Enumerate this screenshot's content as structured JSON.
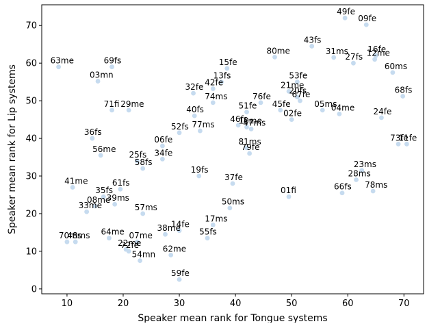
{
  "chart_data": {
    "type": "scatter",
    "title": "",
    "xlabel": "Speaker mean rank for Tongue systems",
    "ylabel": "Speaker mean rank for Lip systems",
    "xlim": [
      5.5,
      73.5
    ],
    "ylim": [
      -1.3,
      75.5
    ],
    "xticks": [
      10,
      20,
      30,
      40,
      50,
      60,
      70
    ],
    "yticks": [
      0,
      10,
      20,
      30,
      40,
      50,
      60,
      70
    ],
    "grid": false,
    "legend": "none",
    "marker_color": "#c6dbef",
    "points": [
      {
        "label": "49fe",
        "x": 59.5,
        "y": 72.0
      },
      {
        "label": "09fe",
        "x": 63.3,
        "y": 70.2
      },
      {
        "label": "43fs",
        "x": 53.6,
        "y": 64.5
      },
      {
        "label": "31ms",
        "x": 57.5,
        "y": 61.5
      },
      {
        "label": "80me",
        "x": 47.0,
        "y": 61.6
      },
      {
        "label": "27fs",
        "x": 61.0,
        "y": 60.0
      },
      {
        "label": "16fe",
        "x": 65.0,
        "y": 62.0
      },
      {
        "label": "12me",
        "x": 64.8,
        "y": 61.0
      },
      {
        "label": "60ms",
        "x": 68.0,
        "y": 57.5
      },
      {
        "label": "68fs",
        "x": 69.8,
        "y": 51.2
      },
      {
        "label": "63me",
        "x": 8.5,
        "y": 59.0
      },
      {
        "label": "69fs",
        "x": 18.0,
        "y": 59.0
      },
      {
        "label": "03mn",
        "x": 15.5,
        "y": 55.2
      },
      {
        "label": "71fi",
        "x": 18.0,
        "y": 47.5
      },
      {
        "label": "29me",
        "x": 21.0,
        "y": 47.5
      },
      {
        "label": "15fe",
        "x": 38.5,
        "y": 58.6
      },
      {
        "label": "13fs",
        "x": 37.5,
        "y": 55.0
      },
      {
        "label": "32fe",
        "x": 32.5,
        "y": 52.0
      },
      {
        "label": "42fe",
        "x": 36.0,
        "y": 53.2
      },
      {
        "label": "74ms",
        "x": 36.0,
        "y": 49.5
      },
      {
        "label": "40fs",
        "x": 32.7,
        "y": 46.0
      },
      {
        "label": "46fs",
        "x": 40.5,
        "y": 43.5
      },
      {
        "label": "77ms",
        "x": 33.7,
        "y": 42.0
      },
      {
        "label": "52fs",
        "x": 30.0,
        "y": 41.5
      },
      {
        "label": "06fe",
        "x": 27.0,
        "y": 38.0
      },
      {
        "label": "34fe",
        "x": 27.0,
        "y": 34.5
      },
      {
        "label": "36fs",
        "x": 14.5,
        "y": 40.0
      },
      {
        "label": "56me",
        "x": 16.0,
        "y": 35.5
      },
      {
        "label": "25fs",
        "x": 22.5,
        "y": 34.0
      },
      {
        "label": "58fs",
        "x": 23.5,
        "y": 32.0
      },
      {
        "label": "53fe",
        "x": 51.0,
        "y": 55.0
      },
      {
        "label": "21me",
        "x": 49.5,
        "y": 52.5
      },
      {
        "label": "20fs",
        "x": 51.0,
        "y": 51.0
      },
      {
        "label": "76fe",
        "x": 44.5,
        "y": 49.5
      },
      {
        "label": "67fe",
        "x": 51.5,
        "y": 50.0
      },
      {
        "label": "51fe",
        "x": 42.0,
        "y": 47.0
      },
      {
        "label": "45fe",
        "x": 48.0,
        "y": 47.5
      },
      {
        "label": "05ms",
        "x": 55.5,
        "y": 47.5
      },
      {
        "label": "04me",
        "x": 58.5,
        "y": 46.5
      },
      {
        "label": "24fe",
        "x": 66.0,
        "y": 45.5
      },
      {
        "label": "02fe",
        "x": 50.0,
        "y": 45.0
      },
      {
        "label": "10me",
        "x": 42.0,
        "y": 43.0
      },
      {
        "label": "47ms",
        "x": 42.8,
        "y": 42.5
      },
      {
        "label": "81ms",
        "x": 42.0,
        "y": 37.5
      },
      {
        "label": "79fe",
        "x": 42.5,
        "y": 36.0
      },
      {
        "label": "73fe",
        "x": 69.0,
        "y": 38.5
      },
      {
        "label": "11fe",
        "x": 70.5,
        "y": 38.5
      },
      {
        "label": "19fs",
        "x": 33.5,
        "y": 30.0
      },
      {
        "label": "37fe",
        "x": 39.5,
        "y": 28.0
      },
      {
        "label": "23ms",
        "x": 62.5,
        "y": 31.5
      },
      {
        "label": "28ms",
        "x": 61.5,
        "y": 29.0
      },
      {
        "label": "78ms",
        "x": 64.5,
        "y": 26.0
      },
      {
        "label": "66fs",
        "x": 59.0,
        "y": 25.5
      },
      {
        "label": "01fi",
        "x": 49.5,
        "y": 24.5
      },
      {
        "label": "41me",
        "x": 11.0,
        "y": 27.0
      },
      {
        "label": "35fs",
        "x": 16.5,
        "y": 24.5
      },
      {
        "label": "61fs",
        "x": 19.5,
        "y": 26.5
      },
      {
        "label": "08me",
        "x": 15.0,
        "y": 22.0
      },
      {
        "label": "39ms",
        "x": 18.5,
        "y": 22.5
      },
      {
        "label": "33me",
        "x": 13.5,
        "y": 20.5
      },
      {
        "label": "57ms",
        "x": 23.5,
        "y": 20.0
      },
      {
        "label": "50ms",
        "x": 39.0,
        "y": 21.5
      },
      {
        "label": "17ms",
        "x": 36.0,
        "y": 17.0
      },
      {
        "label": "55fs",
        "x": 35.0,
        "y": 13.5
      },
      {
        "label": "14fe",
        "x": 30.0,
        "y": 15.5
      },
      {
        "label": "38me",
        "x": 27.5,
        "y": 14.5
      },
      {
        "label": "64me",
        "x": 17.5,
        "y": 13.5
      },
      {
        "label": "07me",
        "x": 22.5,
        "y": 12.5
      },
      {
        "label": "70ms",
        "x": 10.0,
        "y": 12.5
      },
      {
        "label": "48ms",
        "x": 11.5,
        "y": 12.5
      },
      {
        "label": "22me",
        "x": 20.5,
        "y": 10.5
      },
      {
        "label": "72fe",
        "x": 21.0,
        "y": 10.0
      },
      {
        "label": "62me",
        "x": 28.5,
        "y": 9.0
      },
      {
        "label": "54mn",
        "x": 23.0,
        "y": 7.5
      },
      {
        "label": "59fe",
        "x": 30.0,
        "y": 2.5
      }
    ]
  }
}
